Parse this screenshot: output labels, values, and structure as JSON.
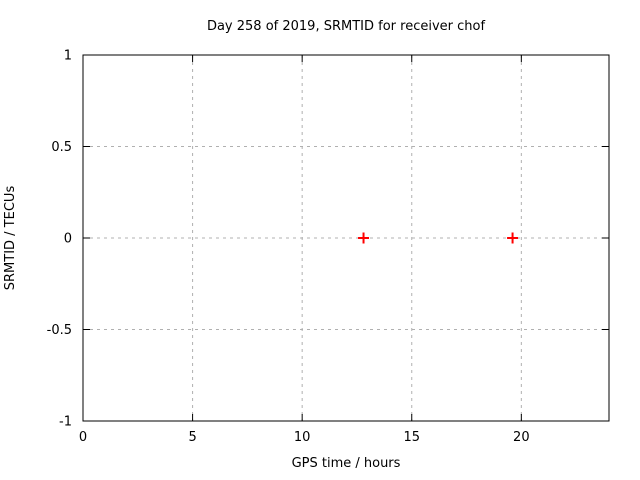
{
  "chart_data": {
    "type": "scatter",
    "title": "Day 258 of 2019, SRMTID for receiver chof",
    "xlabel": "GPS time / hours",
    "ylabel": "SRMTID / TECUs",
    "xlim": [
      0,
      24
    ],
    "ylim": [
      -1,
      1
    ],
    "xticks": [
      0,
      5,
      10,
      15,
      20
    ],
    "yticks": [
      -1,
      -0.5,
      0,
      0.5,
      1
    ],
    "grid": true,
    "tick_style": "inward-mirrored",
    "legend": "none",
    "series": [
      {
        "name": "SRMTID",
        "marker": "plus",
        "color": "#ff0000",
        "points": [
          [
            12.8,
            0.0
          ],
          [
            19.6,
            0.0
          ]
        ]
      }
    ],
    "colors": {
      "background": "#ffffff",
      "border": "#000000",
      "grid": "#b0b0b0",
      "text": "#000000",
      "marker": "#ff0000"
    }
  }
}
